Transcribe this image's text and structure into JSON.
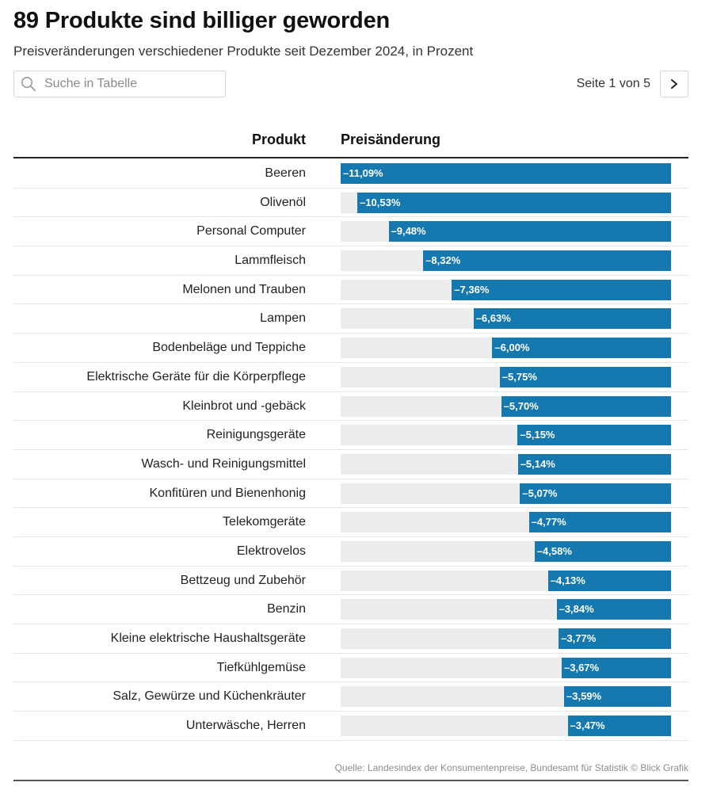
{
  "title": "89 Produkte sind billiger geworden",
  "subtitle": "Preisveränderungen verschiedener Produkte seit Dezember 2024, in Prozent",
  "search": {
    "placeholder": "Suche in Tabelle",
    "value": ""
  },
  "pagination": {
    "text": "Seite 1 von 5",
    "next_icon": "chevron-right-icon"
  },
  "columns": {
    "product": "Produkt",
    "change": "Preisänderung"
  },
  "colors": {
    "bar": "#1579b0",
    "track": "#ececec"
  },
  "chart_data": {
    "type": "bar",
    "orientation": "horizontal",
    "xlim": [
      -11.09,
      0
    ],
    "categories": [
      "Beeren",
      "Olivenöl",
      "Personal Computer",
      "Lammfleisch",
      "Melonen und Trauben",
      "Lampen",
      "Bodenbeläge und Teppiche",
      "Elektrische Geräte für die Körperpflege",
      "Kleinbrot und -gebäck",
      "Reinigungsgeräte",
      "Wasch- und Reinigungsmittel",
      "Konfitüren und Bienenhonig",
      "Telekomgeräte",
      "Elektrovelos",
      "Bettzeug und Zubehör",
      "Benzin",
      "Kleine elektrische Haushaltsgeräte",
      "Tiefkühlgemüse",
      "Salz, Gewürze und Küchenkräuter",
      "Unterwäsche, Herren"
    ],
    "values": [
      -11.09,
      -10.53,
      -9.48,
      -8.32,
      -7.36,
      -6.63,
      -6.0,
      -5.75,
      -5.7,
      -5.15,
      -5.14,
      -5.07,
      -4.77,
      -4.58,
      -4.13,
      -3.84,
      -3.77,
      -3.67,
      -3.59,
      -3.47
    ],
    "labels": [
      "–11,09%",
      "–10,53%",
      "–9,48%",
      "–8,32%",
      "–7,36%",
      "–6,63%",
      "–6,00%",
      "–5,75%",
      "–5,70%",
      "–5,15%",
      "–5,14%",
      "–5,07%",
      "–4,77%",
      "–4,58%",
      "–4,13%",
      "–3,84%",
      "–3,77%",
      "–3,67%",
      "–3,59%",
      "–3,47%"
    ]
  },
  "source": "Quelle: Landesindex der Konsumentenpreise, Bundesamt für Statistik © Blick Grafik"
}
